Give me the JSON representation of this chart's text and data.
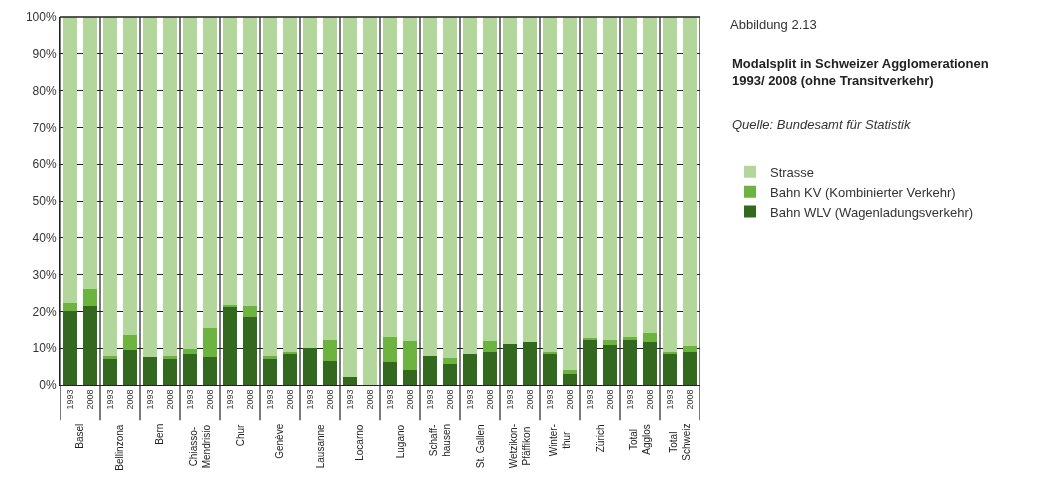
{
  "chart_data": {
    "type": "bar",
    "stacked": true,
    "title": "Abbildung 2.13",
    "subtitle": "Modalsplit in Schweizer Agglomerationen\n1993/ 2008 (ohne Transitverkehr)",
    "categories": [
      "1993",
      "2008",
      "1993",
      "2008",
      "1993",
      "2008",
      "1993",
      "2008",
      "1993",
      "2008",
      "1993",
      "2008",
      "1993",
      "2008",
      "1993",
      "2008",
      "1993",
      "2008",
      "1993",
      "2008",
      "1993",
      "2008",
      "1993",
      "2008",
      "1993",
      "2008",
      "1993",
      "2008",
      "1993",
      "2008",
      "1993",
      "2008"
    ],
    "annotations": [
      "Basel",
      "Bellinzona",
      "Bern",
      "Chiasso-\nMendrisio",
      "Chur",
      "Genève",
      "Lausanne",
      "Locarno",
      "Lugano",
      "Schaff-\nhausen",
      "St. Gallen",
      "Wetzikon-\nPfäffikon",
      "Winter-\nthur",
      "Zürich",
      "Total\nAgglos",
      "Total\nSchweiz",
      "Quelle: Bundesamt für Statistik"
    ],
    "series": [
      {
        "name": "Bahn WLV (Wagenladungsverkehr)",
        "color": "#33691e",
        "values": [
          20.0,
          21.5,
          7.2,
          9.4,
          7.6,
          7.2,
          8.3,
          7.6,
          21.2,
          18.6,
          7.2,
          8.6,
          10.1,
          6.5,
          2.2,
          0,
          6.2,
          4.1,
          8.0,
          5.6,
          8.3,
          9.1,
          11.2,
          11.6,
          8.3,
          3.1,
          12.3,
          10.9,
          12.3,
          11.6,
          8.3,
          9.1
        ]
      },
      {
        "name": "Bahn KV (Kombinierter Verkehr)",
        "color": "#6db33f",
        "values": [
          2.2,
          4.6,
          0.7,
          4.3,
          0,
          0.7,
          1.5,
          7.8,
          0.6,
          2.9,
          0.7,
          0.5,
          0,
          5.8,
          0,
          0,
          6.8,
          7.8,
          0,
          1.7,
          0,
          2.8,
          0,
          0,
          0.8,
          1.0,
          0.4,
          1.4,
          0.7,
          2.4,
          0.8,
          1.4
        ]
      },
      {
        "name": "Strasse",
        "color": "#b3d69b",
        "values": [
          77.8,
          73.9,
          92.1,
          86.3,
          92.4,
          92.1,
          90.2,
          84.6,
          78.2,
          78.5,
          92.1,
          90.9,
          89.9,
          87.7,
          97.8,
          100,
          87.0,
          88.1,
          92.0,
          92.7,
          91.7,
          88.1,
          88.8,
          88.4,
          90.9,
          95.9,
          87.3,
          87.7,
          87.0,
          86.0,
          90.9,
          89.5
        ]
      }
    ],
    "ylim": [
      0,
      100
    ],
    "yticks": [
      {
        "value": 0,
        "label": "0%"
      },
      {
        "value": 10,
        "label": "10%"
      },
      {
        "value": 20,
        "label": "20%"
      },
      {
        "value": 30,
        "label": "30%"
      },
      {
        "value": 40,
        "label": "40%"
      },
      {
        "value": 50,
        "label": "50%"
      },
      {
        "value": 60,
        "label": "60%"
      },
      {
        "value": 70,
        "label": "70%"
      },
      {
        "value": 80,
        "label": "80%"
      },
      {
        "value": 90,
        "label": "90%"
      },
      {
        "value": 100,
        "label": "100%"
      }
    ],
    "grid": "y",
    "legend": "right"
  }
}
